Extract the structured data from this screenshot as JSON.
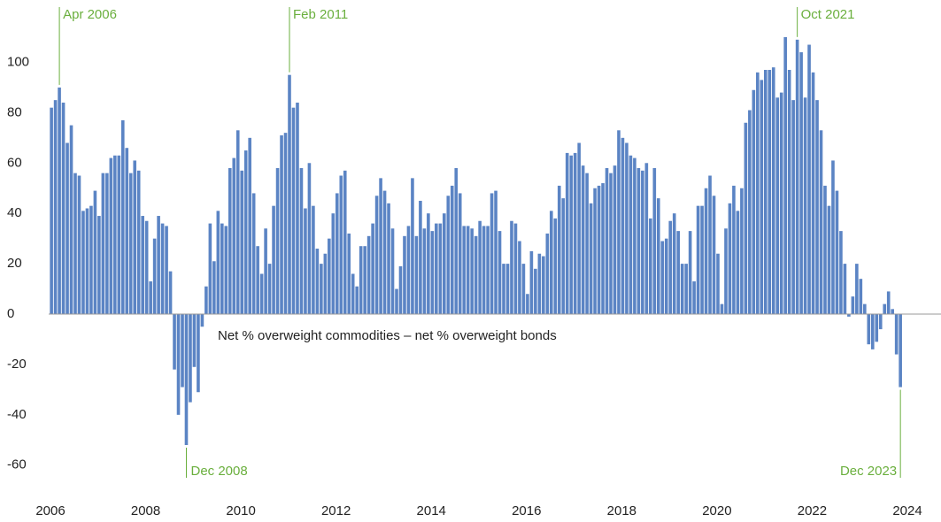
{
  "chart_data": {
    "type": "bar",
    "series_label": "Net % overweight commodities – net % overweight bonds",
    "color": "#5b84c4",
    "annotation_color": "#6aaf3d",
    "values": [
      82,
      85,
      90,
      84,
      68,
      75,
      56,
      55,
      41,
      42,
      43,
      49,
      39,
      56,
      56,
      62,
      63,
      63,
      77,
      66,
      56,
      61,
      57,
      39,
      37,
      13,
      30,
      39,
      36,
      35,
      17,
      -22,
      -40,
      -29,
      -52,
      -35,
      -21,
      -31,
      -5,
      11,
      36,
      21,
      41,
      36,
      35,
      58,
      62,
      73,
      57,
      65,
      70,
      48,
      27,
      16,
      34,
      20,
      43,
      58,
      71,
      72,
      95,
      82,
      84,
      58,
      42,
      60,
      43,
      26,
      20,
      24,
      30,
      40,
      48,
      55,
      57,
      32,
      16,
      11,
      27,
      27,
      31,
      36,
      47,
      54,
      49,
      44,
      34,
      10,
      19,
      31,
      35,
      54,
      31,
      45,
      34,
      40,
      33,
      36,
      36,
      40,
      47,
      51,
      58,
      48,
      35,
      35,
      34,
      31,
      37,
      35,
      35,
      48,
      49,
      33,
      20,
      20,
      37,
      36,
      29,
      20,
      8,
      25,
      18,
      24,
      23,
      32,
      41,
      38,
      51,
      46,
      64,
      63,
      64,
      68,
      59,
      56,
      44,
      50,
      51,
      52,
      58,
      56,
      59,
      73,
      70,
      68,
      63,
      62,
      58,
      57,
      60,
      38,
      58,
      46,
      29,
      30,
      37,
      40,
      33,
      20,
      20,
      33,
      13,
      43,
      43,
      50,
      55,
      47,
      24,
      4,
      34,
      44,
      51,
      41,
      50,
      76,
      81,
      89,
      96,
      93,
      97,
      97,
      98,
      86,
      88,
      110,
      97,
      85,
      109,
      104,
      86,
      107,
      96,
      85,
      73,
      51,
      43,
      61,
      49,
      33,
      20,
      -1,
      7,
      20,
      14,
      4,
      -12,
      -14,
      -11,
      -6,
      4,
      9,
      2,
      -16,
      -29
    ],
    "annotations": [
      {
        "label": "Apr 2006",
        "index": 2,
        "position": "top"
      },
      {
        "label": "Dec 2008",
        "index": 34,
        "position": "bottom"
      },
      {
        "label": "Feb 2011",
        "index": 60,
        "position": "top"
      },
      {
        "label": "Oct 2021",
        "index": 188,
        "position": "top"
      },
      {
        "label": "Dec 2023",
        "index": 214,
        "position": "bottom"
      }
    ],
    "xlim": [
      2006,
      2024
    ],
    "xticks": [
      2006,
      2008,
      2010,
      2012,
      2014,
      2016,
      2018,
      2020,
      2022,
      2024
    ],
    "ylim": [
      -65,
      123
    ],
    "yticks": [
      -60,
      -40,
      -20,
      0,
      20,
      40,
      60,
      80,
      100
    ],
    "grid": false
  }
}
